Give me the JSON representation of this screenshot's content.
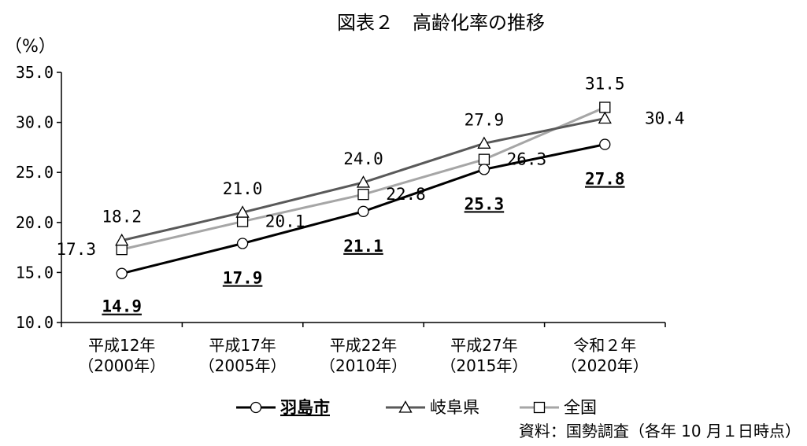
{
  "chart_data": {
    "type": "line",
    "title": "図表２　高齢化率の推移",
    "ylabel": "（%）",
    "ylim": [
      10.0,
      35.0
    ],
    "ytick_step": 5.0,
    "categories": [
      {
        "line1": "平成12年",
        "line2": "（2000年）"
      },
      {
        "line1": "平成17年",
        "line2": "（2005年）"
      },
      {
        "line1": "平成22年",
        "line2": "（2010年）"
      },
      {
        "line1": "平成27年",
        "line2": "（2015年）"
      },
      {
        "line1": "令和２年",
        "line2": "（2020年）"
      }
    ],
    "series": [
      {
        "name": "羽島市",
        "marker": "circle",
        "color": "#000000",
        "values": [
          14.9,
          17.9,
          21.1,
          25.3,
          27.8
        ],
        "labels": [
          "14.9",
          "17.9",
          "21.1",
          "25.3",
          "27.8"
        ],
        "emphasis": true
      },
      {
        "name": "岐阜県",
        "marker": "triangle",
        "color": "#595959",
        "values": [
          18.2,
          21.0,
          24.0,
          27.9,
          30.4
        ],
        "labels": [
          "18.2",
          "21.0",
          "24.0",
          "27.9",
          "30.4"
        ],
        "emphasis": false
      },
      {
        "name": "全国",
        "marker": "square",
        "color": "#a6a6a6",
        "values": [
          17.3,
          20.1,
          22.8,
          26.3,
          31.5
        ],
        "labels": [
          "17.3",
          "20.1",
          "22.8",
          "26.3",
          "31.5"
        ],
        "emphasis": false
      }
    ],
    "grid": false,
    "legend_position": "bottom"
  },
  "source_note": "資料：国勢調査（各年 10 月１日時点）"
}
